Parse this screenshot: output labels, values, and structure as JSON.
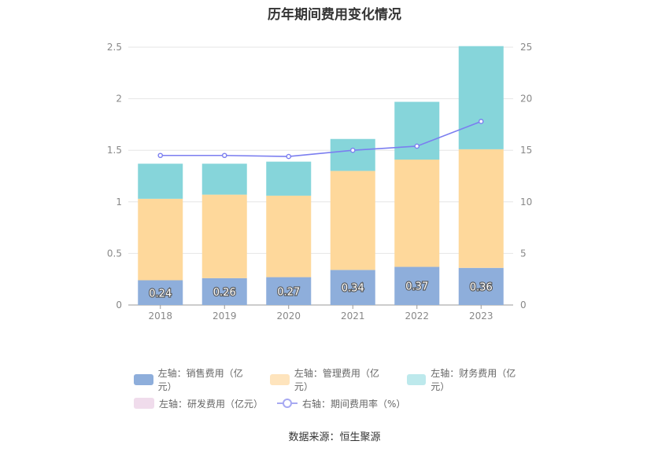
{
  "chart_data": {
    "type": "bar",
    "title": "历年期间费用变化情况",
    "categories": [
      "2018",
      "2019",
      "2020",
      "2021",
      "2022",
      "2023"
    ],
    "left_axis": {
      "ylim": [
        0,
        2.5
      ],
      "ticks": [
        "0",
        "0.5",
        "1",
        "1.5",
        "2",
        "2.5"
      ]
    },
    "right_axis": {
      "ylim": [
        0,
        25
      ],
      "ticks": [
        "0",
        "5",
        "10",
        "15",
        "20",
        "25"
      ]
    },
    "stacked_series": [
      {
        "name": "左轴：销售费用（亿元）",
        "color": "#8eaedb",
        "values": [
          0.24,
          0.26,
          0.27,
          0.34,
          0.37,
          0.36
        ],
        "labels": [
          "0.24",
          "0.26",
          "0.27",
          "0.34",
          "0.37",
          "0.36"
        ]
      },
      {
        "name": "左轴：管理费用（亿元）",
        "color": "#fed89b",
        "values": [
          0.79,
          0.81,
          0.79,
          0.96,
          1.04,
          1.15
        ]
      },
      {
        "name": "左轴：财务费用（亿元）",
        "color": "#86d5da",
        "values": [
          0.34,
          0.3,
          0.33,
          0.31,
          0.56,
          1.0
        ]
      },
      {
        "name": "左轴：研发费用（亿元）",
        "color": "#f0dcec",
        "values": [
          0,
          0,
          0,
          0,
          0,
          0
        ]
      }
    ],
    "line_series": {
      "name": "右轴：期间费用率（%）",
      "color": "#7b7ef0",
      "values": [
        14.5,
        14.5,
        14.4,
        15.0,
        15.4,
        17.8
      ]
    },
    "grid": true,
    "legend_position": "bottom"
  },
  "source": "数据来源：恒生聚源"
}
